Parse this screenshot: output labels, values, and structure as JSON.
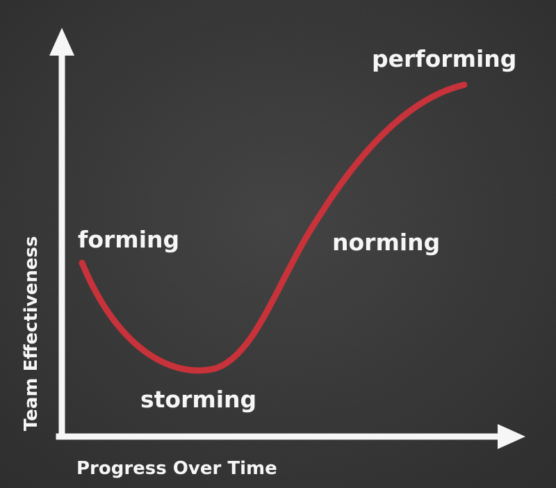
{
  "diagram": {
    "y_axis_label": "Team Effectiveness",
    "x_axis_label": "Progress Over Time",
    "stages": [
      {
        "label": "forming"
      },
      {
        "label": "storming"
      },
      {
        "label": "norming"
      },
      {
        "label": "performing"
      }
    ]
  },
  "colors": {
    "background": "#353535",
    "axis": "#f6f6f6",
    "curve": "#c8323a",
    "text": "#f6f6f6"
  }
}
